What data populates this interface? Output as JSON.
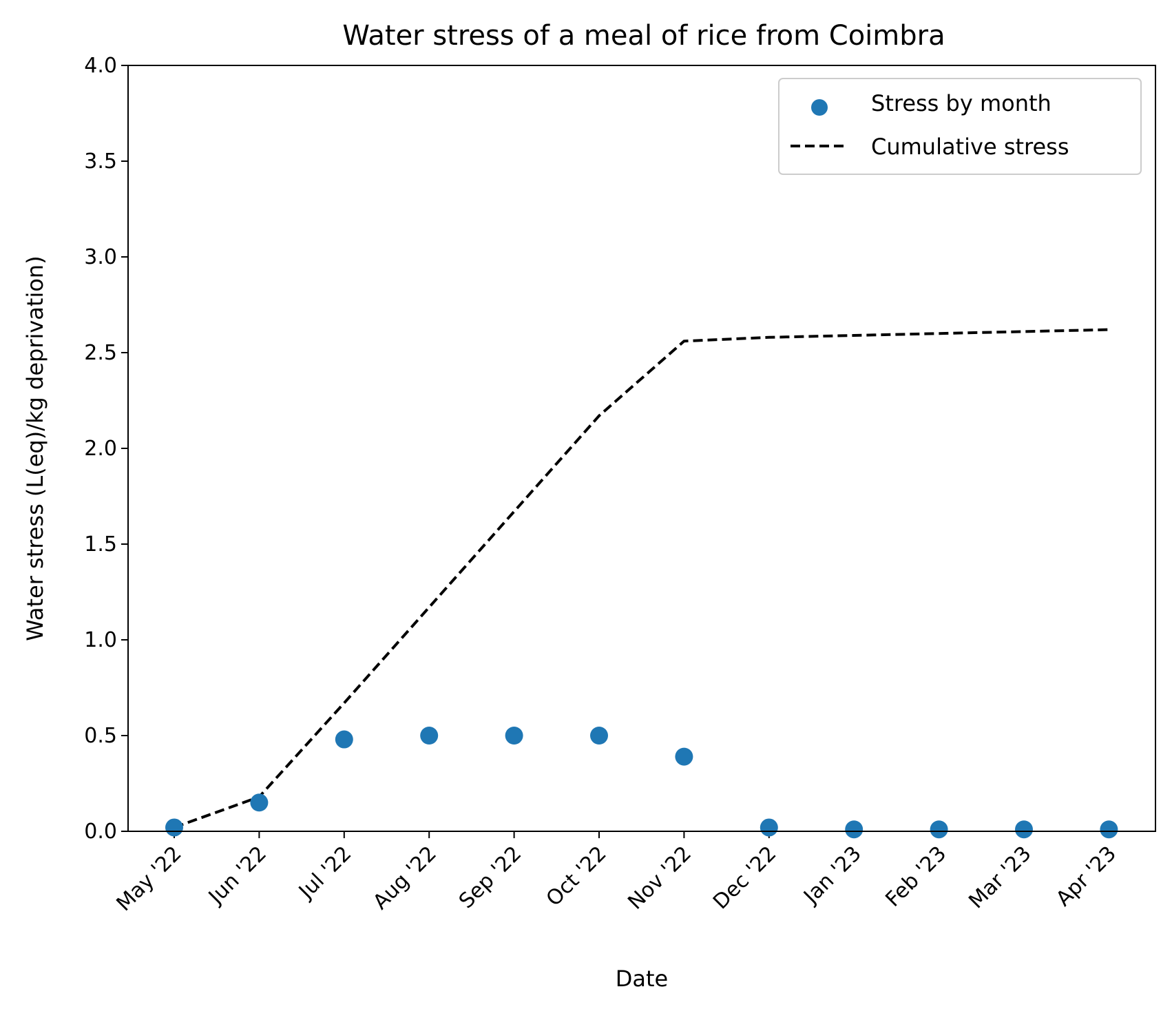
{
  "chart_data": {
    "type": "scatter",
    "title": "Water stress of a meal of rice from Coimbra",
    "xlabel": "Date",
    "ylabel": "Water stress (L(eq)/kg deprivation)",
    "ylim": [
      0,
      4.0
    ],
    "y_ticks": [
      "0.0",
      "0.5",
      "1.0",
      "1.5",
      "2.0",
      "2.5",
      "3.0",
      "3.5",
      "4.0"
    ],
    "categories": [
      "May '22",
      "Jun '22",
      "Jul '22",
      "Aug '22",
      "Sep '22",
      "Oct '22",
      "Nov '22",
      "Dec '22",
      "Jan '23",
      "Feb '23",
      "Mar '23",
      "Apr '23"
    ],
    "grid": false,
    "legend_position": "top-right",
    "series": [
      {
        "name": "Stress by month",
        "kind": "scatter",
        "color": "#1f77b4",
        "values": [
          0.02,
          0.15,
          0.48,
          0.5,
          0.5,
          0.5,
          0.39,
          0.02,
          0.01,
          0.01,
          0.01,
          0.01
        ]
      },
      {
        "name": "Cumulative stress",
        "kind": "line",
        "style": "dashed",
        "color": "#000000",
        "values": [
          0.02,
          0.18,
          0.67,
          1.17,
          1.67,
          2.17,
          2.56,
          2.58,
          2.59,
          2.6,
          2.61,
          2.62
        ]
      }
    ]
  }
}
